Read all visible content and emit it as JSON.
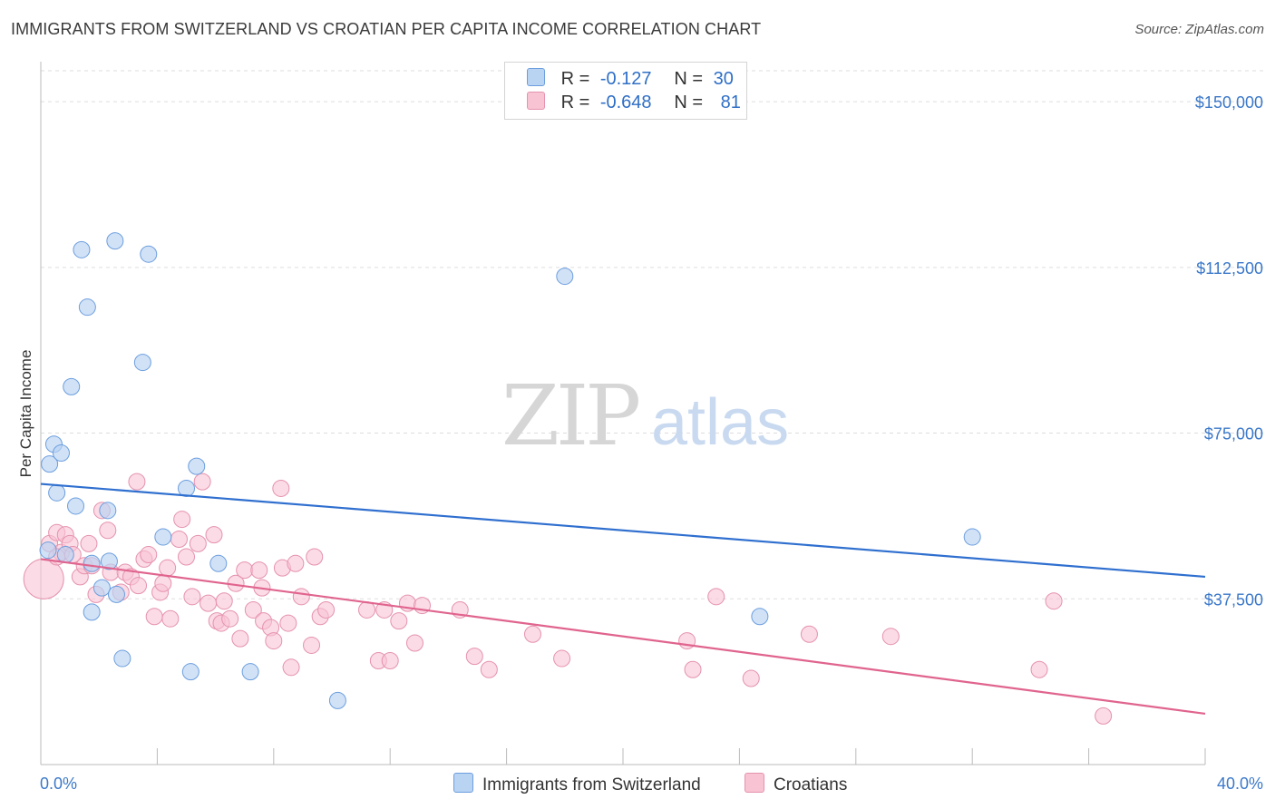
{
  "title": "IMMIGRANTS FROM SWITZERLAND VS CROATIAN PER CAPITA INCOME CORRELATION CHART",
  "source": "Source: ZipAtlas.com",
  "watermark": {
    "zip": "ZIP",
    "atlas": "atlas"
  },
  "colors": {
    "blue_fill": "#b9d3f3",
    "blue_stroke": "#6c9ede",
    "blue_line": "#2f6fcf",
    "pink_fill": "#f8c3d3",
    "pink_stroke": "#e592ae",
    "pink_line": "#e0648e",
    "grid": "#dddddd",
    "tick_text": "#3b78c9"
  },
  "legend": {
    "rows": [
      {
        "r_label": "R =",
        "r_value": "-0.127",
        "n_label": "N =",
        "n_value": "30",
        "color": "#b9d3f3",
        "border": "#6c9ede"
      },
      {
        "r_label": "R =",
        "r_value": "-0.648",
        "n_label": "N =",
        "n_value": "81",
        "color": "#f8c3d3",
        "border": "#e592ae"
      }
    ]
  },
  "bottom_legend": [
    {
      "label": "Immigrants from Switzerland",
      "color": "#b9d3f3",
      "border": "#6c9ede"
    },
    {
      "label": "Croatians",
      "color": "#f8c3d3",
      "border": "#e592ae"
    }
  ],
  "chart_data": {
    "type": "scatter",
    "title": "IMMIGRANTS FROM SWITZERLAND VS CROATIAN PER CAPITA INCOME CORRELATION CHART",
    "xlabel": "",
    "ylabel": "Per Capita Income",
    "xlim": [
      0,
      40
    ],
    "ylim": [
      0,
      157000
    ],
    "x_tick_labels": [
      "0.0%",
      "40.0%"
    ],
    "y_ticks": [
      37500,
      75000,
      112500,
      150000
    ],
    "y_tick_labels": [
      "$37,500",
      "$75,000",
      "$112,500",
      "$150,000"
    ],
    "grid": "horizontal dashed",
    "legend_position": "top-center",
    "series": [
      {
        "name": "Immigrants from Switzerland",
        "color": "#b9d3f3",
        "points": [
          [
            0.25,
            48500
          ],
          [
            0.3,
            68000
          ],
          [
            0.45,
            72500
          ],
          [
            0.55,
            61500
          ],
          [
            0.7,
            70500
          ],
          [
            0.85,
            47500
          ],
          [
            1.05,
            85500
          ],
          [
            1.2,
            58500
          ],
          [
            1.4,
            116500
          ],
          [
            1.6,
            103500
          ],
          [
            1.75,
            45500
          ],
          [
            1.75,
            34500
          ],
          [
            2.1,
            40000
          ],
          [
            2.3,
            57500
          ],
          [
            2.35,
            46000
          ],
          [
            2.55,
            118500
          ],
          [
            2.6,
            38500
          ],
          [
            2.8,
            24000
          ],
          [
            3.5,
            91000
          ],
          [
            3.7,
            115500
          ],
          [
            4.2,
            51500
          ],
          [
            5.0,
            62500
          ],
          [
            5.15,
            21000
          ],
          [
            5.35,
            67500
          ],
          [
            6.1,
            45500
          ],
          [
            7.2,
            21000
          ],
          [
            10.2,
            14500
          ],
          [
            18.0,
            110500
          ],
          [
            24.7,
            33500
          ],
          [
            32.0,
            51500
          ]
        ],
        "trend": {
          "x": [
            0,
            40
          ],
          "y": [
            63500,
            42500
          ]
        }
      },
      {
        "name": "Croatians",
        "color": "#f8c3d3",
        "points": [
          [
            0.1,
            42000
          ],
          [
            0.3,
            50000
          ],
          [
            0.55,
            52500
          ],
          [
            0.7,
            48000
          ],
          [
            0.85,
            52000
          ],
          [
            1.0,
            50000
          ],
          [
            1.1,
            47500
          ],
          [
            1.35,
            42500
          ],
          [
            1.5,
            45000
          ],
          [
            1.65,
            50000
          ],
          [
            1.75,
            45000
          ],
          [
            2.1,
            57500
          ],
          [
            2.3,
            53000
          ],
          [
            2.4,
            43500
          ],
          [
            2.75,
            39000
          ],
          [
            2.9,
            43500
          ],
          [
            3.1,
            42500
          ],
          [
            3.3,
            64000
          ],
          [
            3.35,
            40500
          ],
          [
            3.55,
            46500
          ],
          [
            3.7,
            47500
          ],
          [
            3.9,
            33500
          ],
          [
            4.1,
            39000
          ],
          [
            4.2,
            41000
          ],
          [
            4.35,
            44500
          ],
          [
            4.45,
            33000
          ],
          [
            4.75,
            51000
          ],
          [
            4.85,
            55500
          ],
          [
            5.0,
            47000
          ],
          [
            5.2,
            38000
          ],
          [
            5.4,
            50000
          ],
          [
            5.55,
            64000
          ],
          [
            5.75,
            36500
          ],
          [
            5.95,
            52000
          ],
          [
            6.05,
            32500
          ],
          [
            6.2,
            32000
          ],
          [
            6.3,
            37000
          ],
          [
            6.5,
            33000
          ],
          [
            6.7,
            41000
          ],
          [
            6.85,
            28500
          ],
          [
            7.0,
            44000
          ],
          [
            7.3,
            35000
          ],
          [
            7.5,
            44000
          ],
          [
            7.6,
            40000
          ],
          [
            7.65,
            32500
          ],
          [
            7.9,
            31000
          ],
          [
            8.25,
            62500
          ],
          [
            8.0,
            28000
          ],
          [
            8.3,
            44500
          ],
          [
            8.5,
            32000
          ],
          [
            8.6,
            22000
          ],
          [
            8.75,
            45500
          ],
          [
            8.95,
            38000
          ],
          [
            9.3,
            27000
          ],
          [
            9.4,
            47000
          ],
          [
            9.6,
            33500
          ],
          [
            9.8,
            35000
          ],
          [
            11.2,
            35000
          ],
          [
            11.6,
            23500
          ],
          [
            11.8,
            35000
          ],
          [
            12.0,
            23500
          ],
          [
            12.3,
            32500
          ],
          [
            12.6,
            36500
          ],
          [
            12.85,
            27500
          ],
          [
            13.1,
            36000
          ],
          [
            14.4,
            35000
          ],
          [
            14.9,
            24500
          ],
          [
            15.4,
            21500
          ],
          [
            16.9,
            29500
          ],
          [
            17.9,
            24000
          ],
          [
            22.2,
            28000
          ],
          [
            22.4,
            21500
          ],
          [
            23.2,
            38000
          ],
          [
            24.4,
            19500
          ],
          [
            26.4,
            29500
          ],
          [
            29.2,
            29000
          ],
          [
            34.3,
            21500
          ],
          [
            34.8,
            37000
          ],
          [
            36.5,
            11000
          ],
          [
            0.55,
            47000
          ],
          [
            1.9,
            38500
          ]
        ],
        "trend": {
          "x": [
            0,
            40
          ],
          "y": [
            46500,
            11500
          ]
        }
      }
    ]
  }
}
